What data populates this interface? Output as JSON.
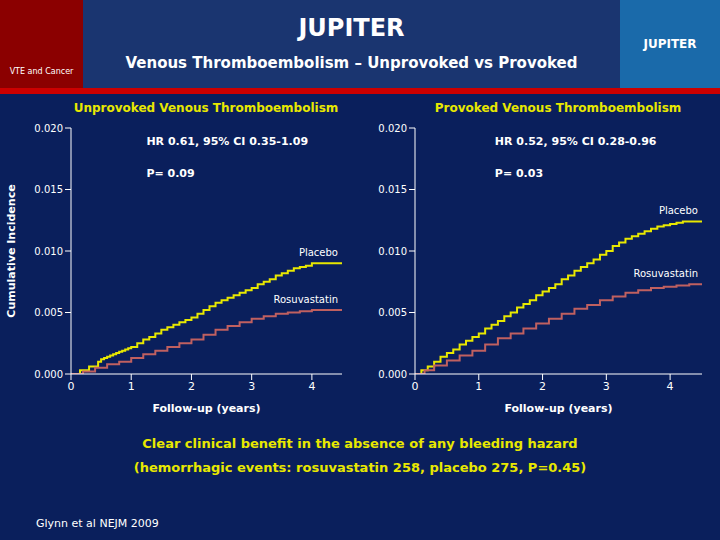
{
  "title": "JUPITER",
  "subtitle": "Venous Thromboembolism – Unprovoked vs Provoked",
  "annotations": [
    "VTE and Cancer",
    "JUPITER",
    "Clear clinical benefit in the absence of any bleeding hazard",
    "(hemorrhagic events: rosuvastatin 258, placebo 275, P=0.45)",
    "Glynn et al NEJM 2009"
  ],
  "chart_data": [
    {
      "type": "line",
      "title": "Unprovoked Venous Thromboembolism",
      "x_label": "Follow-up (years)",
      "y_label": "Cumulative Incidence",
      "xlim": [
        0,
        4.5
      ],
      "ylim": [
        0,
        0.02
      ],
      "xticks": [
        0,
        1,
        2,
        3,
        4
      ],
      "yticks": [
        {
          "value": 0.0,
          "label": "0.000"
        },
        0.005,
        {
          "value": 0.01,
          "label": "0.010"
        },
        0.015,
        {
          "value": 0.02,
          "label": "0.020"
        }
      ],
      "annotations": [
        "HR 0.61, 95% CI 0.35-1.09",
        "P= 0.09"
      ],
      "series": [
        {
          "name": "Placebo",
          "color": "#e8e800",
          "line_style": "step",
          "x": [
            0.0,
            0.15,
            0.3,
            0.45,
            0.5,
            0.55,
            0.6,
            0.65,
            0.7,
            0.75,
            0.8,
            0.85,
            0.9,
            0.95,
            1.0,
            1.1,
            1.2,
            1.3,
            1.4,
            1.5,
            1.6,
            1.7,
            1.8,
            1.9,
            2.0,
            2.1,
            2.2,
            2.3,
            2.4,
            2.5,
            2.6,
            2.7,
            2.8,
            2.9,
            3.0,
            3.1,
            3.2,
            3.3,
            3.4,
            3.5,
            3.6,
            3.7,
            3.8,
            3.9,
            4.0,
            4.1,
            4.2,
            4.3,
            4.4,
            4.5
          ],
          "values": [
            0.0,
            0.0003,
            0.0006,
            0.001,
            0.0012,
            0.0013,
            0.0014,
            0.0015,
            0.0016,
            0.0017,
            0.0018,
            0.0019,
            0.002,
            0.0021,
            0.0022,
            0.0025,
            0.0028,
            0.003,
            0.0033,
            0.0036,
            0.0038,
            0.004,
            0.0042,
            0.0044,
            0.0046,
            0.0049,
            0.0052,
            0.0055,
            0.0058,
            0.006,
            0.0062,
            0.0064,
            0.0066,
            0.0068,
            0.007,
            0.0073,
            0.0075,
            0.0077,
            0.008,
            0.0082,
            0.0084,
            0.0086,
            0.0087,
            0.0088,
            0.009,
            0.009,
            0.009,
            0.009,
            0.009,
            0.009
          ]
        },
        {
          "name": "Rosuvastatin",
          "color": "#c06060",
          "line_style": "step",
          "x": [
            0.0,
            0.2,
            0.4,
            0.6,
            0.8,
            1.0,
            1.2,
            1.4,
            1.6,
            1.8,
            2.0,
            2.2,
            2.4,
            2.6,
            2.8,
            3.0,
            3.2,
            3.4,
            3.6,
            3.8,
            4.0,
            4.2,
            4.4,
            4.5
          ],
          "values": [
            0.0,
            0.0002,
            0.0005,
            0.0008,
            0.001,
            0.0013,
            0.0016,
            0.0019,
            0.0022,
            0.0025,
            0.0028,
            0.0032,
            0.0036,
            0.0039,
            0.0042,
            0.0045,
            0.0047,
            0.0049,
            0.005,
            0.0051,
            0.0052,
            0.0052,
            0.0052,
            0.0052
          ]
        }
      ]
    },
    {
      "type": "line",
      "title": "Provoked Venous Thromboembolism",
      "x_label": "Follow-up (years)",
      "xlim": [
        0,
        4.5
      ],
      "ylim": [
        0,
        0.02
      ],
      "xticks": [
        0,
        1,
        2,
        3,
        4
      ],
      "yticks": [
        {
          "value": 0.0,
          "label": "0.000"
        },
        0.005,
        {
          "value": 0.01,
          "label": "0.010"
        },
        0.015,
        {
          "value": 0.02,
          "label": "0.020"
        }
      ],
      "annotations": [
        "HR 0.52, 95% CI 0.28-0.96",
        "P= 0.03"
      ],
      "series": [
        {
          "name": "Placebo",
          "color": "#e8e800",
          "line_style": "step",
          "x": [
            0.0,
            0.1,
            0.2,
            0.3,
            0.4,
            0.5,
            0.6,
            0.7,
            0.8,
            0.9,
            1.0,
            1.1,
            1.2,
            1.3,
            1.4,
            1.5,
            1.6,
            1.7,
            1.8,
            1.9,
            2.0,
            2.1,
            2.2,
            2.3,
            2.4,
            2.5,
            2.6,
            2.7,
            2.8,
            2.9,
            3.0,
            3.1,
            3.2,
            3.3,
            3.4,
            3.5,
            3.6,
            3.7,
            3.8,
            3.9,
            4.0,
            4.1,
            4.2,
            4.3,
            4.4,
            4.5
          ],
          "values": [
            0.0,
            0.0003,
            0.0006,
            0.001,
            0.0014,
            0.0017,
            0.002,
            0.0024,
            0.0027,
            0.003,
            0.0033,
            0.0037,
            0.004,
            0.0043,
            0.0047,
            0.005,
            0.0054,
            0.0057,
            0.006,
            0.0064,
            0.0067,
            0.007,
            0.0073,
            0.0077,
            0.008,
            0.0084,
            0.0087,
            0.009,
            0.0093,
            0.0097,
            0.01,
            0.0104,
            0.0107,
            0.011,
            0.0112,
            0.0114,
            0.0116,
            0.0118,
            0.012,
            0.0121,
            0.0122,
            0.0123,
            0.0124,
            0.0124,
            0.0124,
            0.0124
          ]
        },
        {
          "name": "Rosuvastatin",
          "color": "#c06060",
          "line_style": "step",
          "x": [
            0.0,
            0.15,
            0.3,
            0.5,
            0.7,
            0.9,
            1.1,
            1.3,
            1.5,
            1.7,
            1.9,
            2.1,
            2.3,
            2.5,
            2.7,
            2.9,
            3.1,
            3.3,
            3.5,
            3.7,
            3.9,
            4.1,
            4.3,
            4.5
          ],
          "values": [
            0.0,
            0.0003,
            0.0007,
            0.0011,
            0.0015,
            0.0019,
            0.0024,
            0.0029,
            0.0033,
            0.0037,
            0.0041,
            0.0045,
            0.0049,
            0.0053,
            0.0056,
            0.006,
            0.0063,
            0.0066,
            0.0068,
            0.007,
            0.0071,
            0.0072,
            0.0073,
            0.0073
          ]
        }
      ]
    }
  ]
}
